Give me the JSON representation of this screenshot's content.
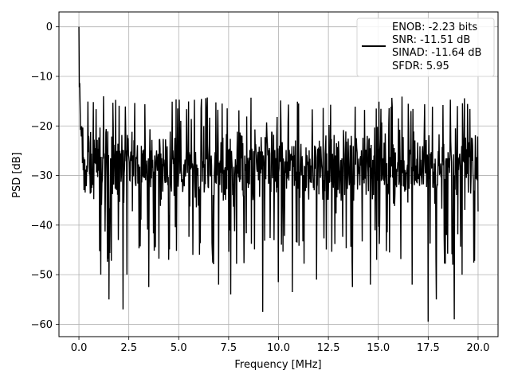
{
  "chart_data": {
    "type": "line",
    "title": "",
    "xlabel": "Frequency [MHz]",
    "ylabel": "PSD [dB]",
    "xlim": [
      -1.0,
      21.0
    ],
    "ylim": [
      -62.5,
      3.0
    ],
    "xticks": [
      0.0,
      2.5,
      5.0,
      7.5,
      10.0,
      12.5,
      15.0,
      17.5,
      20.0
    ],
    "xtick_labels": [
      "0.0",
      "2.5",
      "5.0",
      "7.5",
      "10.0",
      "12.5",
      "15.0",
      "17.5",
      "20.0"
    ],
    "yticks": [
      0,
      -10,
      -20,
      -30,
      -40,
      -50,
      -60
    ],
    "ytick_labels": [
      "0",
      "−10",
      "−20",
      "−30",
      "−40",
      "−50",
      "−60"
    ],
    "grid": true,
    "legend_placement": "top-right",
    "series": [
      {
        "color": "#000000",
        "x_range": [
          0.0,
          20.0
        ],
        "point_count": 1024,
        "peak": {
          "x": 0.0,
          "y": 0.0
        },
        "noise_floor_mean_db": -28.0,
        "noise_band_db": [
          -40.0,
          -17.0
        ],
        "notable_dips": [
          {
            "x": 1.1,
            "y": -50.0
          },
          {
            "x": 1.5,
            "y": -55.0
          },
          {
            "x": 2.2,
            "y": -57.0
          },
          {
            "x": 2.4,
            "y": -50.0
          },
          {
            "x": 3.5,
            "y": -52.5
          },
          {
            "x": 4.5,
            "y": -47.0
          },
          {
            "x": 5.7,
            "y": -46.0
          },
          {
            "x": 7.0,
            "y": -52.0
          },
          {
            "x": 7.6,
            "y": -54.0
          },
          {
            "x": 9.2,
            "y": -57.5
          },
          {
            "x": 10.0,
            "y": -51.5
          },
          {
            "x": 10.7,
            "y": -53.5
          },
          {
            "x": 11.9,
            "y": -51.0
          },
          {
            "x": 13.7,
            "y": -52.5
          },
          {
            "x": 14.6,
            "y": -52.0
          },
          {
            "x": 16.7,
            "y": -52.0
          },
          {
            "x": 17.5,
            "y": -59.5
          },
          {
            "x": 17.9,
            "y": -55.0
          },
          {
            "x": 18.8,
            "y": -59.0
          },
          {
            "x": 19.2,
            "y": -50.0
          }
        ]
      }
    ],
    "legend": {
      "lines": [
        "ENOB: -2.23 bits",
        "SNR: -11.51 dB",
        "SINAD: -11.64 dB",
        "SFDR: 5.95"
      ]
    }
  }
}
